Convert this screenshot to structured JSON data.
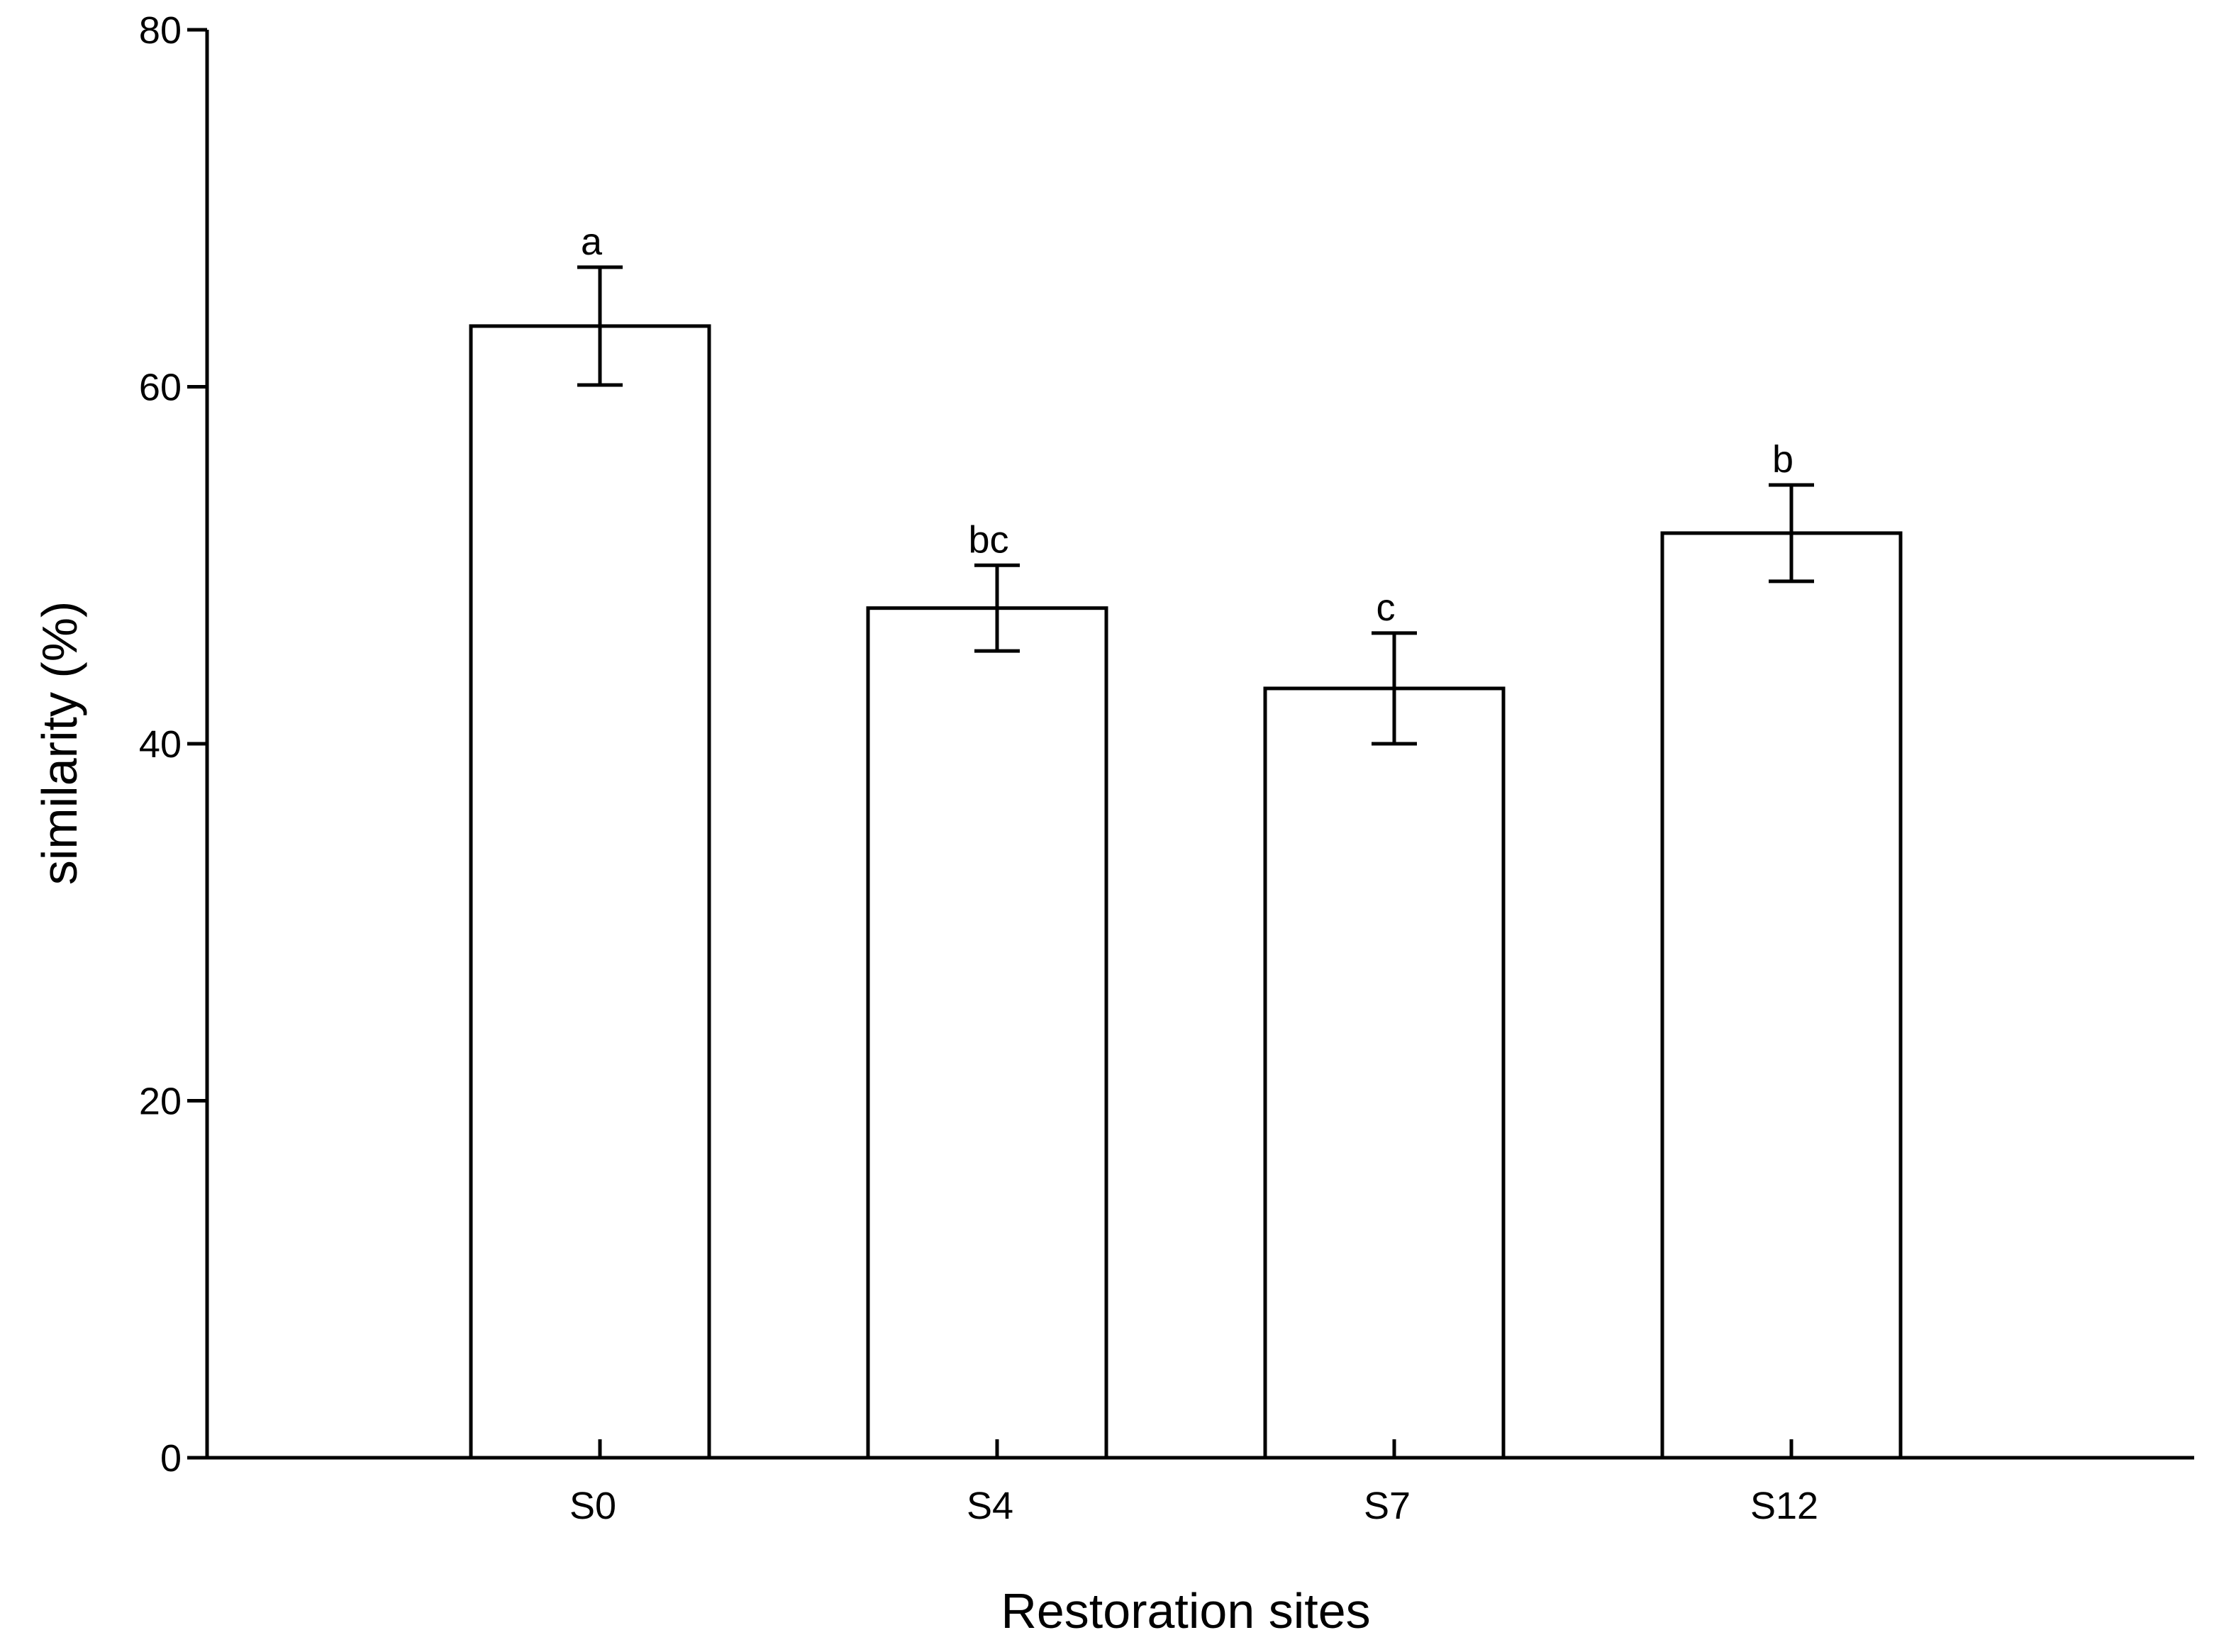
{
  "chart_data": {
    "type": "bar",
    "categories": [
      "S0",
      "S4",
      "S7",
      "S12"
    ],
    "values": [
      63.4,
      47.6,
      43.1,
      51.8
    ],
    "error": [
      3.3,
      2.4,
      3.1,
      2.7
    ],
    "significance": [
      "a",
      "bc",
      "c",
      "b"
    ],
    "xlabel": "Restoration sites",
    "ylabel": "similarity (%)",
    "ylim": [
      0,
      80
    ],
    "yticks": [
      "0",
      "20",
      "40",
      "60",
      "80"
    ],
    "grid": false,
    "legend": "none",
    "colors": {
      "bar_fill": "#ffffff",
      "stroke": "#000000"
    }
  }
}
